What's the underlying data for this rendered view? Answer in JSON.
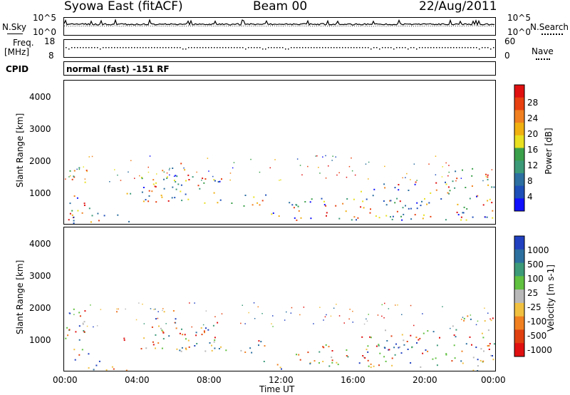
{
  "header": {
    "station": "Syowa East (fitACF)",
    "beam": "Beam 00",
    "date": "22/Aug/2011"
  },
  "sky_panel": {
    "left_label": "N.Sky",
    "right_label": "N.Search",
    "ytick_top": "10^5",
    "ytick_bottom": "10^0",
    "rtick_top": "10^5",
    "rtick_bottom": "10^0"
  },
  "freq_panel": {
    "left_label_1": "Freq.",
    "left_label_2": "[MHz]",
    "right_label": "Nave",
    "ytick_top": "18",
    "ytick_bottom": "8",
    "rtick_top": "60",
    "rtick_bottom": "0"
  },
  "cpid_panel": {
    "left_label": "CPID",
    "text": "normal (fast) -151 RF"
  },
  "chart_data": [
    {
      "type": "heatmap",
      "quantity": "Power",
      "ylabel": "Slant Range [km]",
      "colorbar_label": "Power [dB]",
      "ylim": [
        180,
        4600
      ],
      "yticks": [
        "1000",
        "2000",
        "3000",
        "4000"
      ],
      "colorbar_ticks": [
        "4",
        "8",
        "12",
        "16",
        "20",
        "24",
        "28"
      ],
      "colorbar_range": [
        0,
        32
      ],
      "colors": [
        "#1010ff",
        "#1e4fb8",
        "#2c6fa0",
        "#3c9a78",
        "#3aa04a",
        "#e8e020",
        "#f0b010",
        "#f08020",
        "#e84010",
        "#e01010"
      ]
    },
    {
      "type": "heatmap",
      "quantity": "Velocity",
      "ylabel": "Slant Range [km]",
      "xlabel": "Time UT",
      "colorbar_label": "Velocity [m s-1]",
      "ylim": [
        180,
        4600
      ],
      "yticks": [
        "1000",
        "2000",
        "3000",
        "4000"
      ],
      "xticks": [
        "00:00",
        "04:00",
        "08:00",
        "12:00",
        "16:00",
        "20:00",
        "00:00"
      ],
      "colorbar_ticks": [
        "1000",
        "500",
        "100",
        "25",
        "-25",
        "-100",
        "-500",
        "-1000"
      ],
      "colors": [
        "#2040c0",
        "#2c70a0",
        "#3c9a78",
        "#60c040",
        "#b8b8b8",
        "#f0c040",
        "#f08020",
        "#e04010",
        "#e01010"
      ]
    }
  ]
}
